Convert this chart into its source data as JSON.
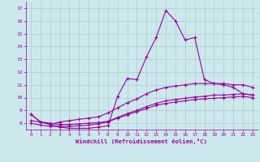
{
  "title": "",
  "xlabel": "Windchill (Refroidissement éolien,°C)",
  "bg_color": "#cce8ec",
  "grid_color": "#aacccc",
  "line_color": "#990099",
  "xlim": [
    -0.5,
    23.5
  ],
  "ylim": [
    7.5,
    17.5
  ],
  "xticks": [
    0,
    1,
    2,
    3,
    4,
    5,
    6,
    7,
    8,
    9,
    10,
    11,
    12,
    13,
    14,
    15,
    16,
    17,
    18,
    19,
    20,
    21,
    22,
    23
  ],
  "yticks": [
    8,
    9,
    10,
    11,
    12,
    13,
    14,
    15,
    16,
    17
  ],
  "series": [
    [
      8.7,
      8.1,
      7.9,
      7.7,
      7.6,
      7.6,
      7.6,
      7.7,
      7.8,
      10.1,
      11.5,
      11.4,
      13.2,
      14.7,
      16.8,
      16.0,
      14.5,
      14.7,
      11.4,
      11.1,
      11.0,
      10.8,
      10.3,
      10.2
    ],
    [
      8.7,
      8.1,
      7.9,
      8.1,
      8.2,
      8.3,
      8.4,
      8.5,
      8.8,
      9.2,
      9.6,
      9.9,
      10.3,
      10.6,
      10.8,
      10.9,
      11.0,
      11.1,
      11.1,
      11.1,
      11.1,
      11.0,
      11.0,
      10.8
    ],
    [
      8.0,
      7.85,
      7.75,
      7.75,
      7.75,
      7.8,
      7.85,
      7.95,
      8.1,
      8.4,
      8.65,
      8.9,
      9.15,
      9.4,
      9.55,
      9.65,
      9.75,
      9.85,
      9.9,
      9.95,
      10.0,
      10.05,
      10.1,
      10.0
    ],
    [
      8.2,
      8.1,
      8.0,
      7.9,
      7.9,
      7.95,
      8.0,
      8.05,
      8.15,
      8.45,
      8.75,
      9.0,
      9.3,
      9.55,
      9.75,
      9.85,
      9.95,
      10.05,
      10.1,
      10.2,
      10.2,
      10.25,
      10.3,
      10.2
    ]
  ]
}
